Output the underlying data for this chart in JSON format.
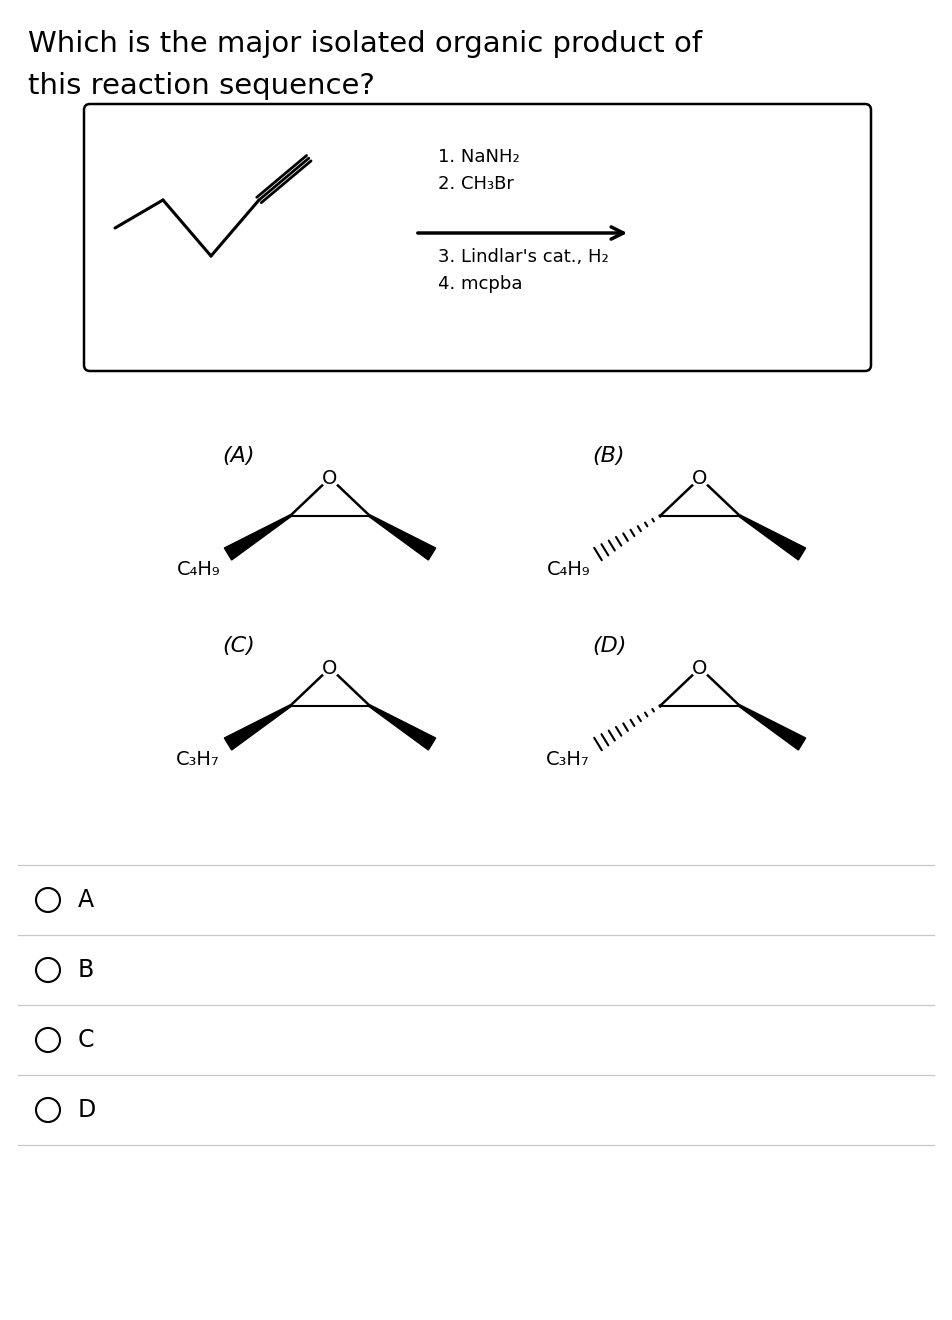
{
  "title_line1": "Which is the major isolated organic product of",
  "title_line2": "this reaction sequence?",
  "reaction_steps_above": [
    "1. NaNH₂",
    "2. CH₃Br"
  ],
  "reaction_steps_below": [
    "3. Lindlar's cat., H₂",
    "4. mcpba"
  ],
  "options": [
    "A",
    "B",
    "C",
    "D"
  ],
  "sub_AB": "C₄H₉",
  "sub_CD": "C₃H₇",
  "bg_color": "#ffffff",
  "text_color": "#000000",
  "font_size_title": 21,
  "font_size_steps": 13,
  "font_size_option_label": 16,
  "font_size_sub": 14,
  "font_size_radio": 17
}
